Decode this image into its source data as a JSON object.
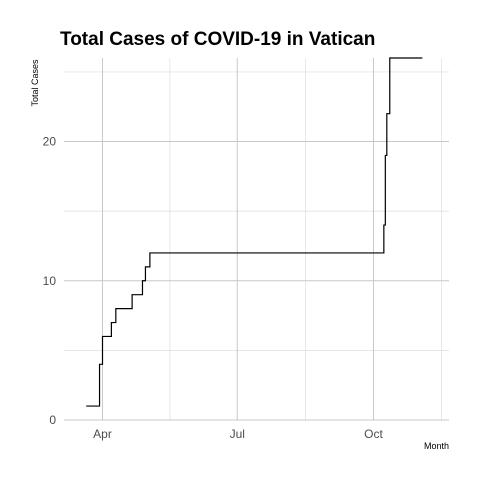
{
  "chart_data": {
    "type": "line",
    "title": "Total Cases of COVID-19 in Vatican",
    "xlabel": "Month",
    "ylabel": "Total Cases",
    "x_ticks": [
      {
        "label": "Apr",
        "date": "2020-04-01"
      },
      {
        "label": "Jul",
        "date": "2020-07-01"
      },
      {
        "label": "Oct",
        "date": "2020-10-01"
      }
    ],
    "y_ticks": [
      0,
      10,
      20
    ],
    "xlim": [
      "2020-03-06",
      "2020-11-21"
    ],
    "ylim": [
      0,
      26
    ],
    "grid": true,
    "series": [
      {
        "color": "#000000",
        "x": [
          "2020-03-21",
          "2020-03-29",
          "2020-03-30",
          "2020-04-01",
          "2020-04-05",
          "2020-04-07",
          "2020-04-10",
          "2020-04-19",
          "2020-04-21",
          "2020-04-27",
          "2020-04-28",
          "2020-04-30",
          "2020-05-03",
          "2020-10-07",
          "2020-10-08",
          "2020-10-09",
          "2020-10-10",
          "2020-10-12",
          "2020-11-03"
        ],
        "y": [
          1,
          1,
          4,
          6,
          6,
          7,
          8,
          8,
          9,
          9,
          10,
          11,
          12,
          12,
          14,
          19,
          22,
          26,
          26
        ]
      }
    ]
  }
}
